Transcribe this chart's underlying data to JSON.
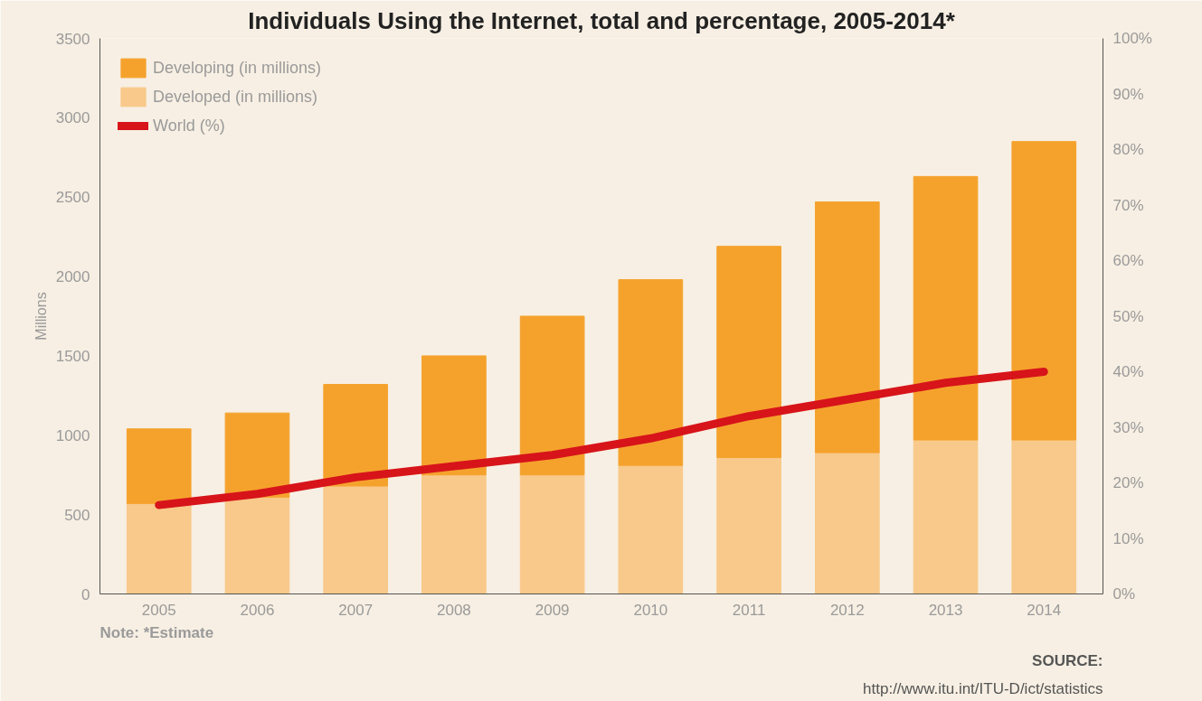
{
  "chart_data": {
    "type": "bar",
    "title": "Individuals Using the Internet, total and percentage, 2005-2014*",
    "categories": [
      "2005",
      "2006",
      "2007",
      "2008",
      "2009",
      "2010",
      "2011",
      "2012",
      "2013",
      "2014"
    ],
    "stacked": true,
    "series": [
      {
        "name": "Developed (in millions)",
        "color": "#f8c98a",
        "values": [
          570,
          610,
          680,
          750,
          750,
          810,
          860,
          890,
          970,
          970
        ]
      },
      {
        "name": "Developing (in millions)",
        "color": "#f5a22d",
        "values": [
          470,
          530,
          640,
          750,
          1000,
          1170,
          1330,
          1580,
          1660,
          1880
        ]
      },
      {
        "name": "World (%)",
        "type": "line",
        "axis": "y2",
        "color": "#d7141a",
        "values": [
          16,
          18,
          21,
          23,
          25,
          28,
          32,
          35,
          38,
          40
        ]
      }
    ],
    "ylabel": "Millions",
    "ylim": [
      0,
      3500
    ],
    "yticks": [
      0,
      500,
      1000,
      1500,
      2000,
      2500,
      3000,
      3500
    ],
    "y2lim": [
      0,
      100
    ],
    "y2ticks": [
      {
        "value": 0,
        "label": "0%"
      },
      {
        "value": 10,
        "label": "10%"
      },
      {
        "value": 20,
        "label": "20%"
      },
      {
        "value": 30,
        "label": "30%"
      },
      {
        "value": 40,
        "label": "40%"
      },
      {
        "value": 50,
        "label": "50%"
      },
      {
        "value": 60,
        "label": "60%"
      },
      {
        "value": 70,
        "label": "70%"
      },
      {
        "value": 80,
        "label": "80%"
      },
      {
        "value": 90,
        "label": "90%"
      },
      {
        "value": 100,
        "label": "100%"
      }
    ],
    "legend": "top left",
    "grid": false,
    "marker": "none",
    "line_style": "solid",
    "annotations": [
      "Note: *Estimate",
      "SOURCE:",
      "http://www.itu.int/ITU-D/ict/statistics"
    ]
  }
}
